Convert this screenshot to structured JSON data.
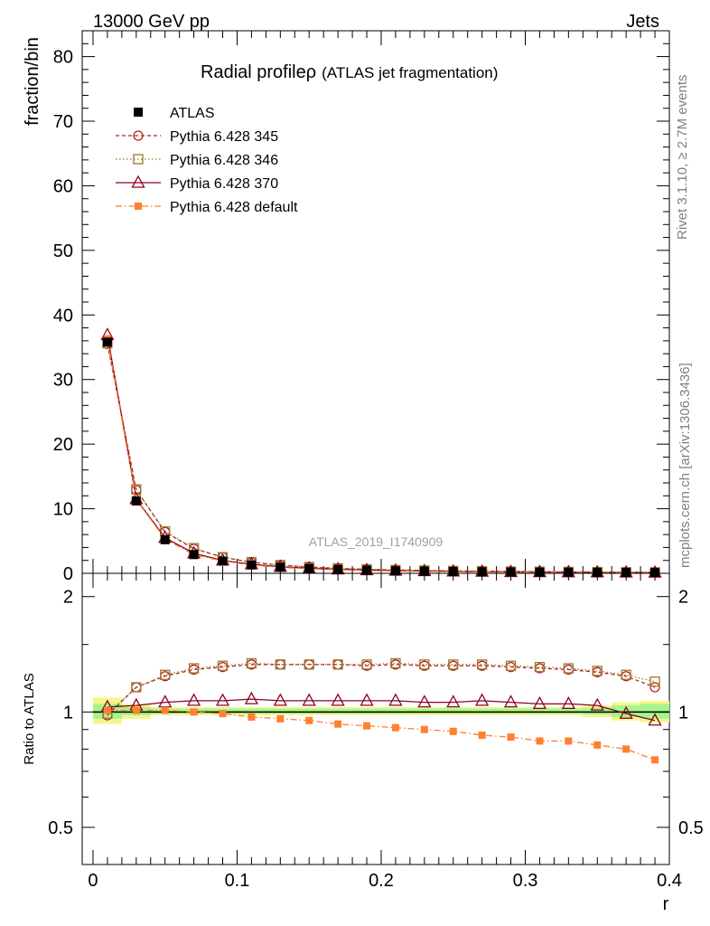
{
  "header": {
    "energy_label": "13000 GeV pp",
    "process_label": "Jets"
  },
  "side_labels": {
    "rivet": "Rivet 3.1.10, ≥ 2.7M events",
    "mcplots": "mcplots.cern.ch [arXiv:1306.3436]"
  },
  "watermark": "ATLAS_2019_I1740909",
  "colors": {
    "ATLAS": "#000000",
    "p345": "#b22222",
    "p346": "#a0782d",
    "p370": "#8b0020",
    "default": "#ff8030",
    "band_green": "#a6f58c",
    "band_yellow": "#f5f58c"
  },
  "chart_data": [
    {
      "type": "line",
      "panel": "main",
      "title": "Radial profile",
      "title_symbol": "ρ",
      "title_suffix": "(ATLAS jet fragmentation)",
      "ylabel": "fraction/bin",
      "xlim": [
        -0.0075,
        0.4
      ],
      "ylim": [
        0,
        84
      ],
      "yticks": [
        0,
        10,
        20,
        30,
        40,
        50,
        60,
        70,
        80
      ],
      "x": [
        0.01,
        0.03,
        0.05,
        0.07,
        0.09,
        0.11,
        0.13,
        0.15,
        0.17,
        0.19,
        0.21,
        0.23,
        0.25,
        0.27,
        0.29,
        0.31,
        0.33,
        0.35,
        0.37,
        0.39
      ],
      "series": [
        {
          "key": "ATLAS",
          "name": "ATLAS",
          "marker": "filled-square",
          "values": [
            35.8,
            11.2,
            5.2,
            2.9,
            1.9,
            1.3,
            0.95,
            0.73,
            0.58,
            0.47,
            0.39,
            0.33,
            0.28,
            0.24,
            0.21,
            0.19,
            0.17,
            0.15,
            0.14,
            0.13
          ]
        },
        {
          "key": "p345",
          "name": "Pythia 6.428 345",
          "marker": "open-circle",
          "dash": "4,3",
          "values": [
            35.5,
            12.9,
            6.4,
            3.8,
            2.5,
            1.7,
            1.27,
            0.97,
            0.77,
            0.62,
            0.52,
            0.44,
            0.37,
            0.32,
            0.28,
            0.25,
            0.22,
            0.19,
            0.17,
            0.15
          ]
        },
        {
          "key": "p346",
          "name": "Pythia 6.428 346",
          "marker": "open-square",
          "dash": "1.5,2.5",
          "values": [
            35.6,
            13.0,
            6.5,
            3.9,
            2.5,
            1.75,
            1.28,
            0.98,
            0.78,
            0.63,
            0.52,
            0.44,
            0.38,
            0.33,
            0.28,
            0.25,
            0.22,
            0.2,
            0.18,
            0.16
          ]
        },
        {
          "key": "p370",
          "name": "Pythia 6.428 370",
          "marker": "open-triangle",
          "dash": "",
          "values": [
            36.9,
            11.5,
            5.5,
            3.1,
            2.0,
            1.4,
            1.02,
            0.78,
            0.62,
            0.5,
            0.42,
            0.35,
            0.3,
            0.26,
            0.22,
            0.2,
            0.18,
            0.16,
            0.14,
            0.12
          ]
        },
        {
          "key": "default",
          "name": "Pythia 6.428 default",
          "marker": "filled-square-small",
          "dash": "7,3,1.5,3",
          "values": [
            36.3,
            11.4,
            5.3,
            2.9,
            1.9,
            1.25,
            0.91,
            0.69,
            0.54,
            0.43,
            0.36,
            0.3,
            0.25,
            0.21,
            0.18,
            0.16,
            0.14,
            0.12,
            0.11,
            0.1
          ]
        }
      ]
    },
    {
      "type": "line",
      "panel": "ratio",
      "ylabel": "Ratio to ATLAS",
      "xlabel": "r",
      "xlim": [
        -0.0075,
        0.4
      ],
      "ylim": [
        0.4,
        2.3
      ],
      "yticks": [
        0.5,
        1,
        2
      ],
      "ytick_labels": [
        "0.5",
        "1",
        "2"
      ],
      "xticks": [
        0,
        0.1,
        0.2,
        0.3,
        0.4
      ],
      "xtick_labels": [
        "0",
        "0.1",
        "0.2",
        "0.3",
        "0.4"
      ],
      "x": [
        0.01,
        0.03,
        0.05,
        0.07,
        0.09,
        0.11,
        0.13,
        0.15,
        0.17,
        0.19,
        0.21,
        0.23,
        0.25,
        0.27,
        0.29,
        0.31,
        0.33,
        0.35,
        0.37,
        0.39
      ],
      "band_yellow": {
        "lo": [
          0.93,
          0.96,
          0.98,
          0.98,
          0.98,
          0.98,
          0.98,
          0.98,
          0.98,
          0.98,
          0.98,
          0.98,
          0.98,
          0.98,
          0.98,
          0.98,
          0.98,
          0.97,
          0.95,
          0.94
        ],
        "hi": [
          1.09,
          1.05,
          1.03,
          1.03,
          1.03,
          1.03,
          1.03,
          1.03,
          1.03,
          1.03,
          1.03,
          1.03,
          1.03,
          1.03,
          1.03,
          1.03,
          1.03,
          1.04,
          1.06,
          1.07
        ]
      },
      "band_green": {
        "lo": [
          0.96,
          0.98,
          0.99,
          0.99,
          0.99,
          0.99,
          0.99,
          0.99,
          0.99,
          0.99,
          0.99,
          0.99,
          0.99,
          0.99,
          0.99,
          0.99,
          0.99,
          0.985,
          0.97,
          0.96
        ],
        "hi": [
          1.05,
          1.03,
          1.02,
          1.02,
          1.02,
          1.02,
          1.02,
          1.02,
          1.02,
          1.02,
          1.02,
          1.02,
          1.02,
          1.02,
          1.02,
          1.02,
          1.02,
          1.025,
          1.04,
          1.05
        ]
      },
      "series": [
        {
          "key": "p345",
          "values": [
            0.98,
            1.16,
            1.24,
            1.29,
            1.31,
            1.33,
            1.33,
            1.33,
            1.33,
            1.32,
            1.33,
            1.32,
            1.32,
            1.32,
            1.31,
            1.3,
            1.29,
            1.27,
            1.24,
            1.16
          ]
        },
        {
          "key": "p346",
          "values": [
            0.99,
            1.16,
            1.25,
            1.3,
            1.32,
            1.34,
            1.33,
            1.33,
            1.33,
            1.33,
            1.34,
            1.33,
            1.33,
            1.33,
            1.32,
            1.31,
            1.3,
            1.28,
            1.25,
            1.2
          ]
        },
        {
          "key": "p370",
          "values": [
            1.03,
            1.04,
            1.06,
            1.07,
            1.07,
            1.08,
            1.07,
            1.07,
            1.07,
            1.07,
            1.07,
            1.06,
            1.06,
            1.07,
            1.06,
            1.05,
            1.05,
            1.04,
            0.99,
            0.95
          ]
        },
        {
          "key": "default",
          "values": [
            1.01,
            1.01,
            1.01,
            1.0,
            0.99,
            0.97,
            0.96,
            0.95,
            0.93,
            0.92,
            0.91,
            0.9,
            0.89,
            0.87,
            0.86,
            0.84,
            0.84,
            0.82,
            0.8,
            0.75
          ]
        }
      ]
    }
  ]
}
